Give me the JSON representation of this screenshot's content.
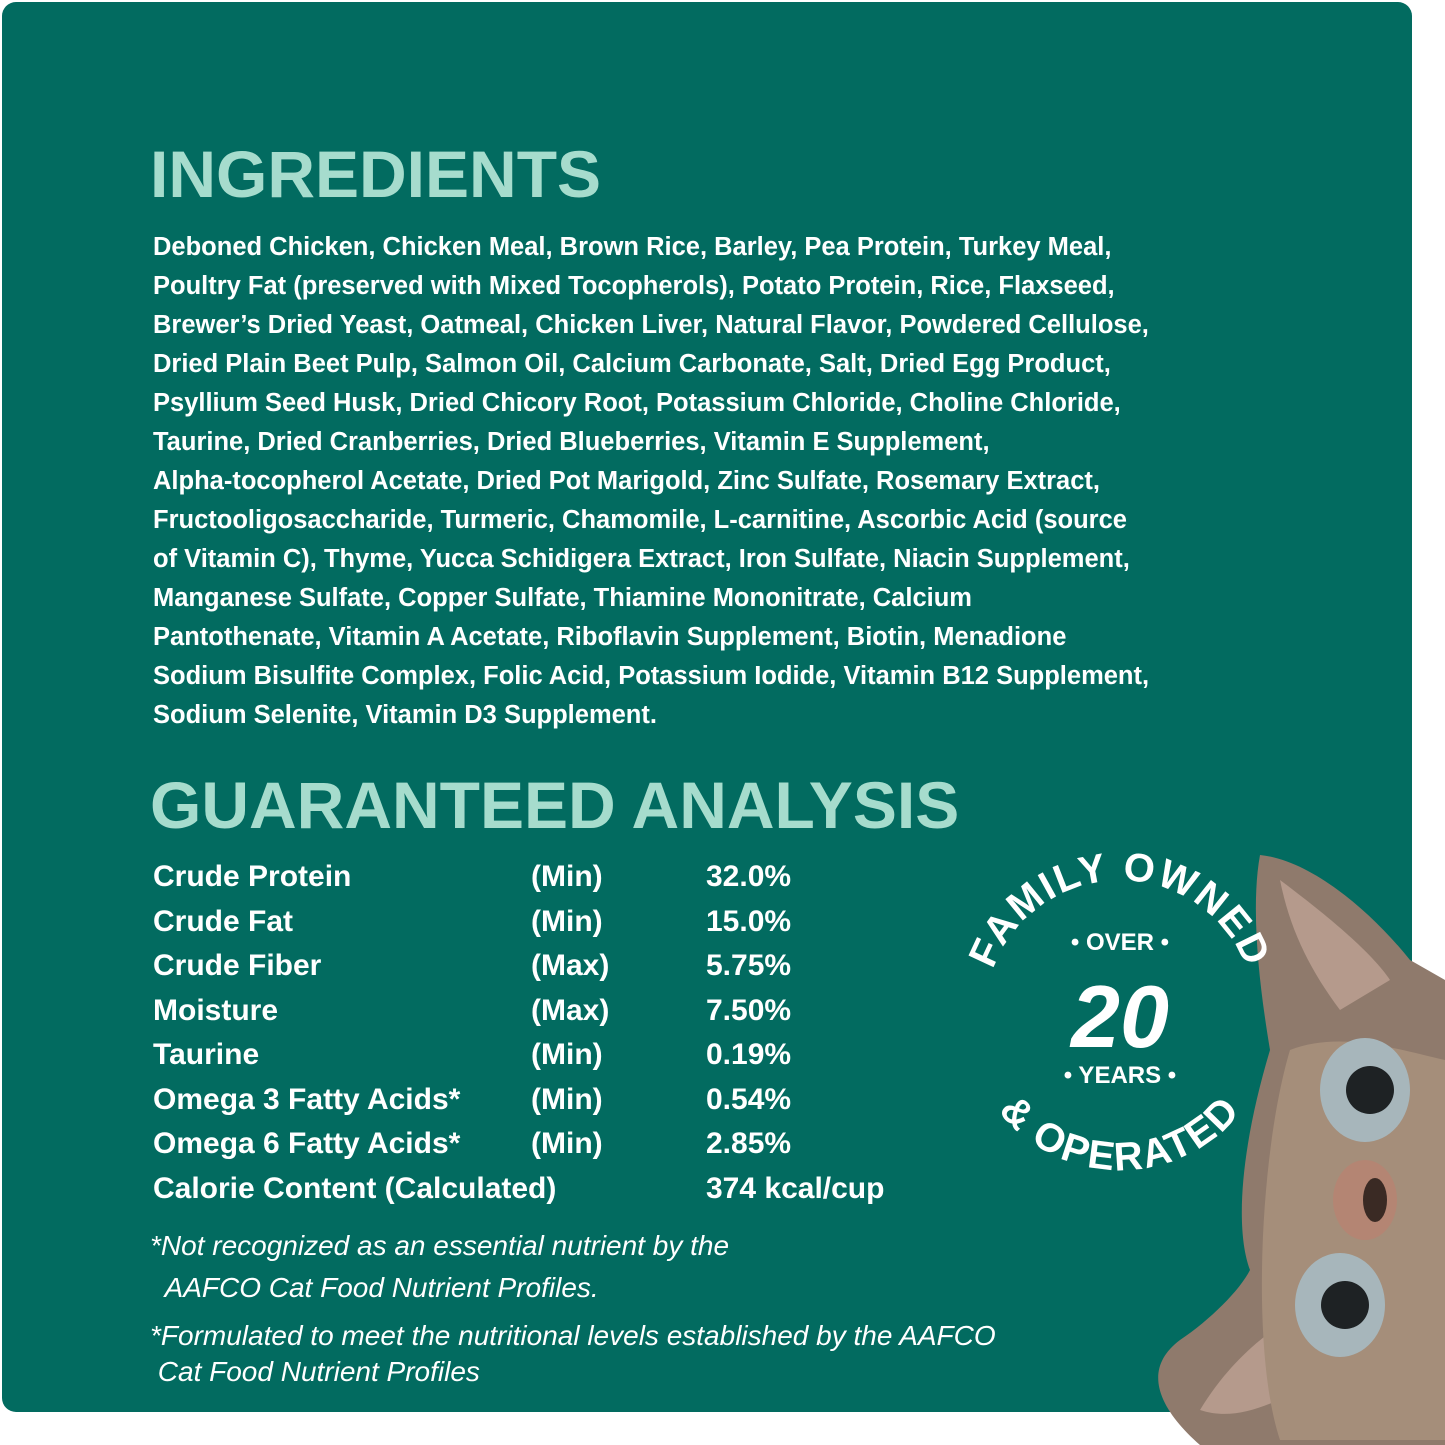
{
  "colors": {
    "panel": "#026b60",
    "heading": "#a6dccd",
    "text": "#ffffff"
  },
  "ingredients": {
    "title": "INGREDIENTS",
    "lines": [
      "Deboned Chicken, Chicken Meal, Brown Rice, Barley, Pea Protein, Turkey Meal,",
      "Poultry Fat (preserved with Mixed Tocopherols), Potato Protein, Rice, Flaxseed,",
      "Brewer’s Dried Yeast, Oatmeal, Chicken Liver, Natural Flavor, Powdered Cellulose,",
      "Dried Plain Beet Pulp, Salmon Oil, Calcium Carbonate, Salt, Dried Egg Product,",
      "Psyllium Seed Husk, Dried Chicory Root, Potassium Chloride, Choline Chloride,",
      "Taurine, Dried Cranberries, Dried Blueberries, Vitamin E Supplement,",
      "Alpha-tocopherol Acetate, Dried Pot Marigold, Zinc Sulfate, Rosemary Extract,",
      "Fructooligosaccharide, Turmeric, Chamomile, L-carnitine, Ascorbic Acid (source",
      "of Vitamin C), Thyme, Yucca Schidigera Extract, Iron Sulfate, Niacin Supplement,",
      "Manganese Sulfate, Copper Sulfate, Thiamine Mononitrate, Calcium",
      "Pantothenate, Vitamin A Acetate, Riboflavin Supplement, Biotin, Menadione",
      "Sodium Bisulfite Complex, Folic Acid, Potassium Iodide, Vitamin B12 Supplement,",
      "Sodium Selenite, Vitamin D3 Supplement."
    ]
  },
  "analysis": {
    "title": "GUARANTEED ANALYSIS",
    "rows": [
      {
        "name": "Crude Protein",
        "qual": "(Min)",
        "value": "32.0%"
      },
      {
        "name": "Crude Fat",
        "qual": "(Min)",
        "value": "15.0%"
      },
      {
        "name": "Crude Fiber",
        "qual": "(Max)",
        "value": "5.75%"
      },
      {
        "name": "Moisture",
        "qual": "(Max)",
        "value": "7.50%"
      },
      {
        "name": "Taurine",
        "qual": "(Min)",
        "value": "0.19%"
      },
      {
        "name": "Omega 3 Fatty Acids*",
        "qual": "(Min)",
        "value": "0.54%"
      },
      {
        "name": "Omega 6 Fatty Acids*",
        "qual": "(Min)",
        "value": "2.85%"
      },
      {
        "name": "Calorie Content (Calculated)",
        "qual": "",
        "value": "374 kcal/cup"
      }
    ],
    "footnotes": [
      [
        "*Not recognized as an essential nutrient by the",
        "  AAFCO Cat Food Nutrient Profiles."
      ],
      [
        "*Formulated to meet the nutritional levels established by the AAFCO",
        " Cat Food Nutrient Profiles"
      ]
    ]
  },
  "badge": {
    "top": "FAMILY OWNED",
    "bottom": "& OPERATED",
    "over": "• OVER •",
    "number": "20",
    "years": "• YEARS •"
  },
  "image": {
    "cat": "cat-photo"
  }
}
